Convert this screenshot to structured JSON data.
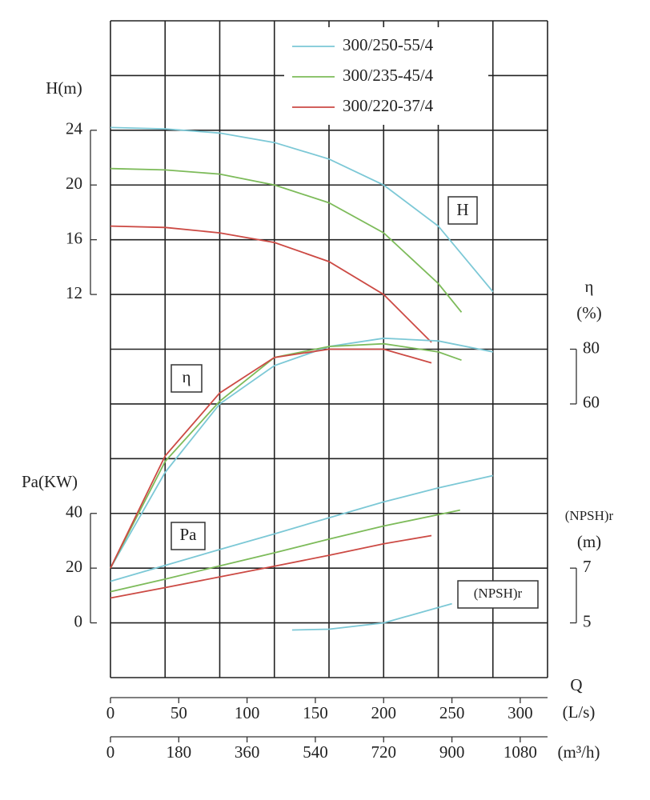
{
  "chart_data": {
    "type": "line",
    "x_title": "Q",
    "xlabel": "(L/s)",
    "xlim": [
      0,
      320
    ],
    "xticks": [
      0,
      50,
      100,
      150,
      200,
      250,
      300
    ],
    "x2label": "(m³/h)",
    "x2lim": [
      0,
      1152
    ],
    "x2ticks": [
      0,
      180,
      360,
      540,
      720,
      900,
      1080
    ],
    "xgrid": [
      0,
      40,
      80,
      120,
      160,
      200,
      240,
      280,
      320
    ],
    "legend": "upper right",
    "panels": [
      {
        "axis_label": "H(m)",
        "tag": "H",
        "axis_side": "left",
        "ylim": [
          -16,
          32
        ],
        "yticks": [
          12,
          16,
          20,
          24
        ],
        "ygrid": [
          -16,
          -12,
          -8,
          -4,
          0,
          4,
          8,
          12,
          16,
          20,
          24,
          28,
          32
        ],
        "series": [
          {
            "name": "300/250-55/4",
            "color": "#7cc8d6",
            "x": [
              0,
              40,
              80,
              120,
              160,
              200,
              240,
              280
            ],
            "values": [
              24.2,
              24.1,
              23.8,
              23.1,
              21.9,
              20.0,
              17.0,
              12.2
            ]
          },
          {
            "name": "300/235-45/4",
            "color": "#7dbb5a",
            "x": [
              0,
              40,
              80,
              120,
              160,
              200,
              240,
              257
            ],
            "values": [
              21.2,
              21.1,
              20.8,
              20.0,
              18.7,
              16.5,
              12.8,
              10.7
            ]
          },
          {
            "name": "300/220-37/4",
            "color": "#cc4a44",
            "x": [
              0,
              40,
              80,
              120,
              160,
              200,
              235
            ],
            "values": [
              17.0,
              16.9,
              16.5,
              15.8,
              14.4,
              12.0,
              8.5
            ]
          }
        ]
      },
      {
        "axis_label": "η",
        "axis_unit": "(%)",
        "tag": "η",
        "axis_side": "right",
        "ylim": [
          -40,
          200
        ],
        "yticks": [
          60,
          80
        ],
        "series": [
          {
            "color": "#7cc8d6",
            "x": [
              0,
              40,
              80,
              120,
              160,
              200,
              240,
              280
            ],
            "values": [
              0,
              35,
              60,
              74,
              81,
              84,
              83,
              79
            ]
          },
          {
            "color": "#7dbb5a",
            "x": [
              0,
              40,
              80,
              120,
              160,
              200,
              240,
              257
            ],
            "values": [
              0,
              39,
              61,
              77,
              81,
              82,
              79,
              76
            ]
          },
          {
            "color": "#cc4a44",
            "x": [
              0,
              40,
              80,
              120,
              160,
              200,
              235
            ],
            "values": [
              0,
              41,
              64,
              77,
              80,
              80,
              75
            ]
          }
        ]
      },
      {
        "axis_label": "Pa(KW)",
        "tag": "Pa",
        "axis_side": "left",
        "ylim": [
          -20,
          220
        ],
        "yticks": [
          0,
          20,
          40
        ],
        "series": [
          {
            "color": "#7cc8d6",
            "x": [
              0,
              40,
              80,
              120,
              160,
              200,
              240,
              280
            ],
            "values": [
              15.2,
              21.0,
              26.8,
              32.5,
              38.4,
              44.2,
              49.3,
              53.8
            ]
          },
          {
            "color": "#7dbb5a",
            "x": [
              0,
              40,
              80,
              120,
              160,
              200,
              256
            ],
            "values": [
              11.4,
              16.0,
              20.8,
              25.6,
              30.6,
              35.4,
              41.2
            ]
          },
          {
            "color": "#cc4a44",
            "x": [
              0,
              40,
              80,
              120,
              160,
              200,
              235
            ],
            "values": [
              9.1,
              12.9,
              16.8,
              20.7,
              24.7,
              28.9,
              31.9
            ]
          }
        ]
      },
      {
        "axis_label": "(NPSH)r",
        "axis_unit": "(m)",
        "tag": "(NPSH)r",
        "axis_side": "right",
        "ylim": [
          3,
          27
        ],
        "yticks": [
          5,
          7
        ],
        "series": [
          {
            "color": "#7cc8d6",
            "x": [
              133,
              160,
              200,
              250
            ],
            "values": [
              4.74,
              4.77,
              5.0,
              5.7
            ]
          }
        ]
      }
    ]
  }
}
